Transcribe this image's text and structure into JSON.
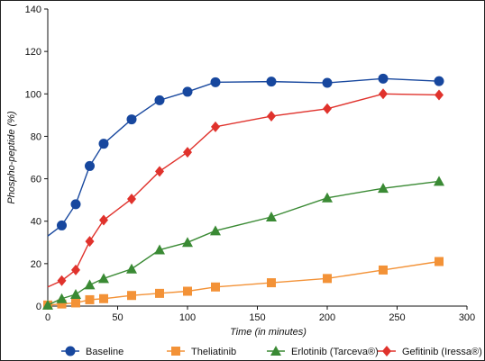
{
  "chart_data": {
    "type": "line",
    "xlabel": "Time (in minutes)",
    "ylabel": "Phospho-peptide (%)",
    "xlim": [
      0,
      300
    ],
    "ylim": [
      0,
      140
    ],
    "xticks": [
      0,
      50,
      100,
      150,
      200,
      250,
      300
    ],
    "yticks": [
      0,
      20,
      40,
      60,
      80,
      100,
      120,
      140
    ],
    "grid": false,
    "legend_position": "bottom",
    "series": [
      {
        "name": "Baseline",
        "color": "#17479e",
        "marker": "circle",
        "x": [
          10,
          20,
          30,
          40,
          60,
          80,
          100,
          120,
          160,
          200,
          240,
          280
        ],
        "y": [
          38,
          48,
          66,
          76.5,
          88,
          97,
          101,
          105.5,
          105.8,
          105.2,
          107.2,
          106
        ],
        "curve_start": {
          "x": 0,
          "y": 33
        }
      },
      {
        "name": "Theliatinib",
        "color": "#f39237",
        "marker": "square",
        "x": [
          0,
          10,
          20,
          30,
          40,
          60,
          80,
          100,
          120,
          160,
          200,
          240,
          280
        ],
        "y": [
          0.5,
          1,
          1.5,
          3,
          3.5,
          5,
          6,
          7,
          9,
          11,
          13,
          17,
          21
        ]
      },
      {
        "name": "Erlotinib (Tarceva®)",
        "color": "#3a8a34",
        "marker": "triangle",
        "x": [
          0,
          10,
          20,
          30,
          40,
          60,
          80,
          100,
          120,
          160,
          200,
          240,
          280
        ],
        "y": [
          0.5,
          3.5,
          5.5,
          10,
          13,
          17.5,
          26.5,
          30,
          35.5,
          42,
          51,
          55.5,
          58.8
        ]
      },
      {
        "name": "Gefitinib (Iressa®)",
        "color": "#e0322c",
        "marker": "diamond",
        "x": [
          10,
          20,
          30,
          40,
          60,
          80,
          100,
          120,
          160,
          200,
          240,
          280
        ],
        "y": [
          12,
          17,
          30.5,
          40.5,
          50.5,
          63.5,
          72.5,
          84.5,
          89.5,
          93,
          100,
          99.5
        ],
        "curve_start": {
          "x": 0,
          "y": 9
        }
      }
    ]
  }
}
